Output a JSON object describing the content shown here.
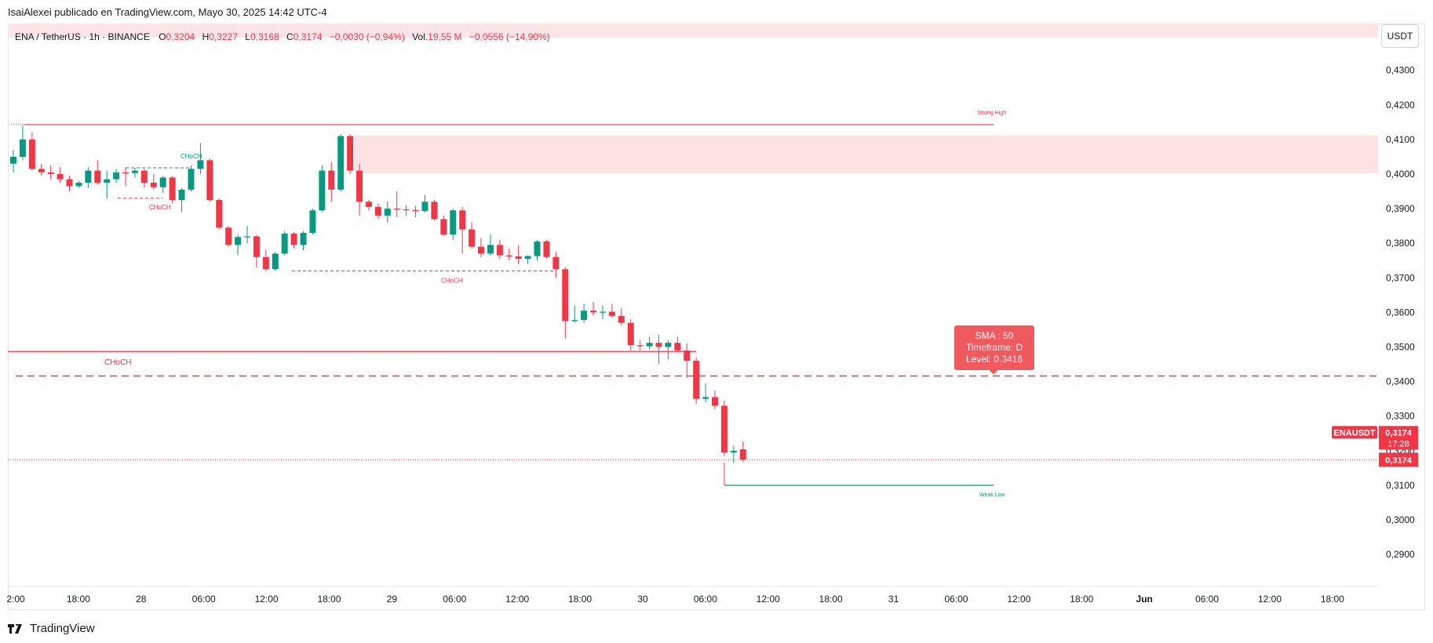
{
  "publisher_line": "IsaiAlexei publicado en TradingView.com, Mayo 30, 2025 14:42 UTC-4",
  "legend": {
    "symbol": "ENA / TetherUS · 1h · BINANCE",
    "open_label": "O",
    "open": "0,3204",
    "high_label": "H",
    "high": "0,3227",
    "low_label": "L",
    "low": "0,3168",
    "close_label": "C",
    "close": "0,3174",
    "change": "−0,0030 (−0,94%)",
    "vol_label": "Vol.",
    "vol": "19,55 M",
    "vol_change": "−0,0556 (−14,90%)"
  },
  "currency_button": "USDT",
  "brand": "TradingView",
  "colors": {
    "up": "#089981",
    "down": "#f23645",
    "zone": "#fde2e4",
    "sma": "#f23645"
  },
  "chart_data": {
    "type": "candlestick",
    "y_axis": {
      "min": 0.285,
      "max": 0.436,
      "ticks": [
        0.29,
        0.3,
        0.31,
        0.32,
        0.33,
        0.34,
        0.35,
        0.36,
        0.37,
        0.38,
        0.39,
        0.4,
        0.41,
        0.42,
        0.43
      ],
      "tick_labels": [
        "0,2900",
        "0,3000",
        "0,3100",
        "0,3200",
        "0,3300",
        "0,3400",
        "0,3500",
        "0,3600",
        "0,3700",
        "0,3800",
        "0,3900",
        "0,4000",
        "0,4100",
        "0,4200",
        "0,4300"
      ]
    },
    "x_axis": {
      "labels": [
        "2:00",
        "18:00",
        "28",
        "06:00",
        "12:00",
        "18:00",
        "29",
        "06:00",
        "12:00",
        "18:00",
        "30",
        "06:00",
        "12:00",
        "18:00",
        "31",
        "06:00",
        "12:00",
        "18:00",
        "Jun",
        "06:00",
        "12:00",
        "18:00"
      ],
      "bold": [
        false,
        false,
        false,
        false,
        false,
        false,
        false,
        false,
        false,
        false,
        false,
        false,
        false,
        false,
        false,
        false,
        false,
        false,
        true,
        false,
        false,
        false
      ]
    },
    "candles": [
      {
        "o": 0.403,
        "h": 0.407,
        "l": 0.4005,
        "c": 0.405
      },
      {
        "o": 0.405,
        "h": 0.414,
        "l": 0.404,
        "c": 0.41
      },
      {
        "o": 0.41,
        "h": 0.412,
        "l": 0.401,
        "c": 0.4015
      },
      {
        "o": 0.4015,
        "h": 0.403,
        "l": 0.3995,
        "c": 0.4005
      },
      {
        "o": 0.4005,
        "h": 0.4025,
        "l": 0.3985,
        "c": 0.4
      },
      {
        "o": 0.4,
        "h": 0.402,
        "l": 0.3975,
        "c": 0.3985
      },
      {
        "o": 0.3985,
        "h": 0.3995,
        "l": 0.395,
        "c": 0.3965
      },
      {
        "o": 0.3965,
        "h": 0.398,
        "l": 0.396,
        "c": 0.3975
      },
      {
        "o": 0.3975,
        "h": 0.402,
        "l": 0.396,
        "c": 0.401
      },
      {
        "o": 0.401,
        "h": 0.404,
        "l": 0.397,
        "c": 0.3975
      },
      {
        "o": 0.3975,
        "h": 0.401,
        "l": 0.393,
        "c": 0.3985
      },
      {
        "o": 0.3985,
        "h": 0.4015,
        "l": 0.3975,
        "c": 0.4005
      },
      {
        "o": 0.4005,
        "h": 0.402,
        "l": 0.3965,
        "c": 0.4003
      },
      {
        "o": 0.4003,
        "h": 0.4018,
        "l": 0.399,
        "c": 0.401
      },
      {
        "o": 0.401,
        "h": 0.4015,
        "l": 0.396,
        "c": 0.3975
      },
      {
        "o": 0.3975,
        "h": 0.4,
        "l": 0.3955,
        "c": 0.3962
      },
      {
        "o": 0.3962,
        "h": 0.3995,
        "l": 0.3945,
        "c": 0.399
      },
      {
        "o": 0.399,
        "h": 0.3995,
        "l": 0.3915,
        "c": 0.3925
      },
      {
        "o": 0.3925,
        "h": 0.396,
        "l": 0.389,
        "c": 0.3955
      },
      {
        "o": 0.3955,
        "h": 0.4025,
        "l": 0.395,
        "c": 0.4015
      },
      {
        "o": 0.4015,
        "h": 0.409,
        "l": 0.4,
        "c": 0.404
      },
      {
        "o": 0.404,
        "h": 0.4045,
        "l": 0.392,
        "c": 0.3925
      },
      {
        "o": 0.3925,
        "h": 0.393,
        "l": 0.384,
        "c": 0.3845
      },
      {
        "o": 0.3845,
        "h": 0.385,
        "l": 0.379,
        "c": 0.3795
      },
      {
        "o": 0.3795,
        "h": 0.3825,
        "l": 0.3765,
        "c": 0.3818
      },
      {
        "o": 0.3818,
        "h": 0.385,
        "l": 0.38,
        "c": 0.382
      },
      {
        "o": 0.382,
        "h": 0.3825,
        "l": 0.373,
        "c": 0.376
      },
      {
        "o": 0.376,
        "h": 0.378,
        "l": 0.372,
        "c": 0.3725
      },
      {
        "o": 0.3725,
        "h": 0.3775,
        "l": 0.372,
        "c": 0.377
      },
      {
        "o": 0.377,
        "h": 0.3835,
        "l": 0.3765,
        "c": 0.3828
      },
      {
        "o": 0.3828,
        "h": 0.3832,
        "l": 0.3785,
        "c": 0.3795
      },
      {
        "o": 0.3795,
        "h": 0.3835,
        "l": 0.378,
        "c": 0.383
      },
      {
        "o": 0.383,
        "h": 0.39,
        "l": 0.3825,
        "c": 0.3895
      },
      {
        "o": 0.3895,
        "h": 0.4025,
        "l": 0.389,
        "c": 0.401
      },
      {
        "o": 0.401,
        "h": 0.4035,
        "l": 0.392,
        "c": 0.3955
      },
      {
        "o": 0.3955,
        "h": 0.4115,
        "l": 0.395,
        "c": 0.411
      },
      {
        "o": 0.411,
        "h": 0.4115,
        "l": 0.4,
        "c": 0.401
      },
      {
        "o": 0.401,
        "h": 0.403,
        "l": 0.388,
        "c": 0.392
      },
      {
        "o": 0.392,
        "h": 0.3925,
        "l": 0.3895,
        "c": 0.3905
      },
      {
        "o": 0.3905,
        "h": 0.3915,
        "l": 0.387,
        "c": 0.388
      },
      {
        "o": 0.388,
        "h": 0.392,
        "l": 0.386,
        "c": 0.39
      },
      {
        "o": 0.39,
        "h": 0.395,
        "l": 0.3875,
        "c": 0.3898
      },
      {
        "o": 0.3898,
        "h": 0.391,
        "l": 0.388,
        "c": 0.3896
      },
      {
        "o": 0.3896,
        "h": 0.3908,
        "l": 0.3875,
        "c": 0.3893
      },
      {
        "o": 0.3893,
        "h": 0.394,
        "l": 0.389,
        "c": 0.392
      },
      {
        "o": 0.392,
        "h": 0.3925,
        "l": 0.3865,
        "c": 0.387
      },
      {
        "o": 0.387,
        "h": 0.388,
        "l": 0.382,
        "c": 0.3825
      },
      {
        "o": 0.3825,
        "h": 0.39,
        "l": 0.381,
        "c": 0.3895
      },
      {
        "o": 0.3895,
        "h": 0.3905,
        "l": 0.377,
        "c": 0.384
      },
      {
        "o": 0.384,
        "h": 0.386,
        "l": 0.3785,
        "c": 0.379
      },
      {
        "o": 0.379,
        "h": 0.3815,
        "l": 0.376,
        "c": 0.377
      },
      {
        "o": 0.377,
        "h": 0.3825,
        "l": 0.3765,
        "c": 0.3795
      },
      {
        "o": 0.3795,
        "h": 0.381,
        "l": 0.3755,
        "c": 0.3765
      },
      {
        "o": 0.3765,
        "h": 0.3785,
        "l": 0.375,
        "c": 0.3762
      },
      {
        "o": 0.3762,
        "h": 0.3795,
        "l": 0.374,
        "c": 0.3755
      },
      {
        "o": 0.3755,
        "h": 0.3765,
        "l": 0.374,
        "c": 0.3763
      },
      {
        "o": 0.3763,
        "h": 0.381,
        "l": 0.375,
        "c": 0.3805
      },
      {
        "o": 0.3805,
        "h": 0.381,
        "l": 0.3755,
        "c": 0.376
      },
      {
        "o": 0.376,
        "h": 0.3775,
        "l": 0.37,
        "c": 0.3725
      },
      {
        "o": 0.3725,
        "h": 0.373,
        "l": 0.3525,
        "c": 0.3575
      },
      {
        "o": 0.3575,
        "h": 0.362,
        "l": 0.357,
        "c": 0.3578
      },
      {
        "o": 0.3578,
        "h": 0.3625,
        "l": 0.357,
        "c": 0.3605
      },
      {
        "o": 0.3605,
        "h": 0.363,
        "l": 0.359,
        "c": 0.36
      },
      {
        "o": 0.36,
        "h": 0.362,
        "l": 0.358,
        "c": 0.3602
      },
      {
        "o": 0.3602,
        "h": 0.3625,
        "l": 0.3585,
        "c": 0.359
      },
      {
        "o": 0.359,
        "h": 0.3612,
        "l": 0.3562,
        "c": 0.357
      },
      {
        "o": 0.357,
        "h": 0.358,
        "l": 0.349,
        "c": 0.3505
      },
      {
        "o": 0.3505,
        "h": 0.352,
        "l": 0.349,
        "c": 0.3502
      },
      {
        "o": 0.3502,
        "h": 0.353,
        "l": 0.3492,
        "c": 0.3512
      },
      {
        "o": 0.3512,
        "h": 0.3535,
        "l": 0.345,
        "c": 0.35
      },
      {
        "o": 0.35,
        "h": 0.352,
        "l": 0.3465,
        "c": 0.3512
      },
      {
        "o": 0.3512,
        "h": 0.353,
        "l": 0.3485,
        "c": 0.349
      },
      {
        "o": 0.349,
        "h": 0.351,
        "l": 0.341,
        "c": 0.346
      },
      {
        "o": 0.346,
        "h": 0.347,
        "l": 0.3335,
        "c": 0.335
      },
      {
        "o": 0.335,
        "h": 0.3395,
        "l": 0.334,
        "c": 0.3355
      },
      {
        "o": 0.3355,
        "h": 0.3375,
        "l": 0.332,
        "c": 0.333
      },
      {
        "o": 0.333,
        "h": 0.3345,
        "l": 0.3185,
        "c": 0.3195
      },
      {
        "o": 0.3195,
        "h": 0.3215,
        "l": 0.3165,
        "c": 0.32
      },
      {
        "o": 0.3204,
        "h": 0.3227,
        "l": 0.3168,
        "c": 0.3174
      }
    ],
    "annotations": {
      "strong_high": {
        "label": "Strong High",
        "price": 0.4143
      },
      "supply_zone": {
        "top": 0.4112,
        "bottom": 0.4002
      },
      "choch_1": {
        "label": "CHoCH",
        "price": 0.4018
      },
      "choch_2": {
        "label": "CHoCH",
        "price": 0.393
      },
      "choch_3": {
        "label": "CHoCH",
        "price": 0.372
      },
      "choch_4": {
        "label": "CHoCH",
        "price": 0.3487
      },
      "weak_low": {
        "label": "Weak Low",
        "price": 0.31
      },
      "sma_level": {
        "price": 0.3416,
        "line1": "SMA : 50",
        "line2": "Timeframe: D",
        "line3": "Level: 0.3416"
      },
      "last_price": {
        "price": 0.3174,
        "label": "0,3174",
        "countdown": "17:28",
        "symbol_tag": "ENAUSDT"
      }
    }
  }
}
